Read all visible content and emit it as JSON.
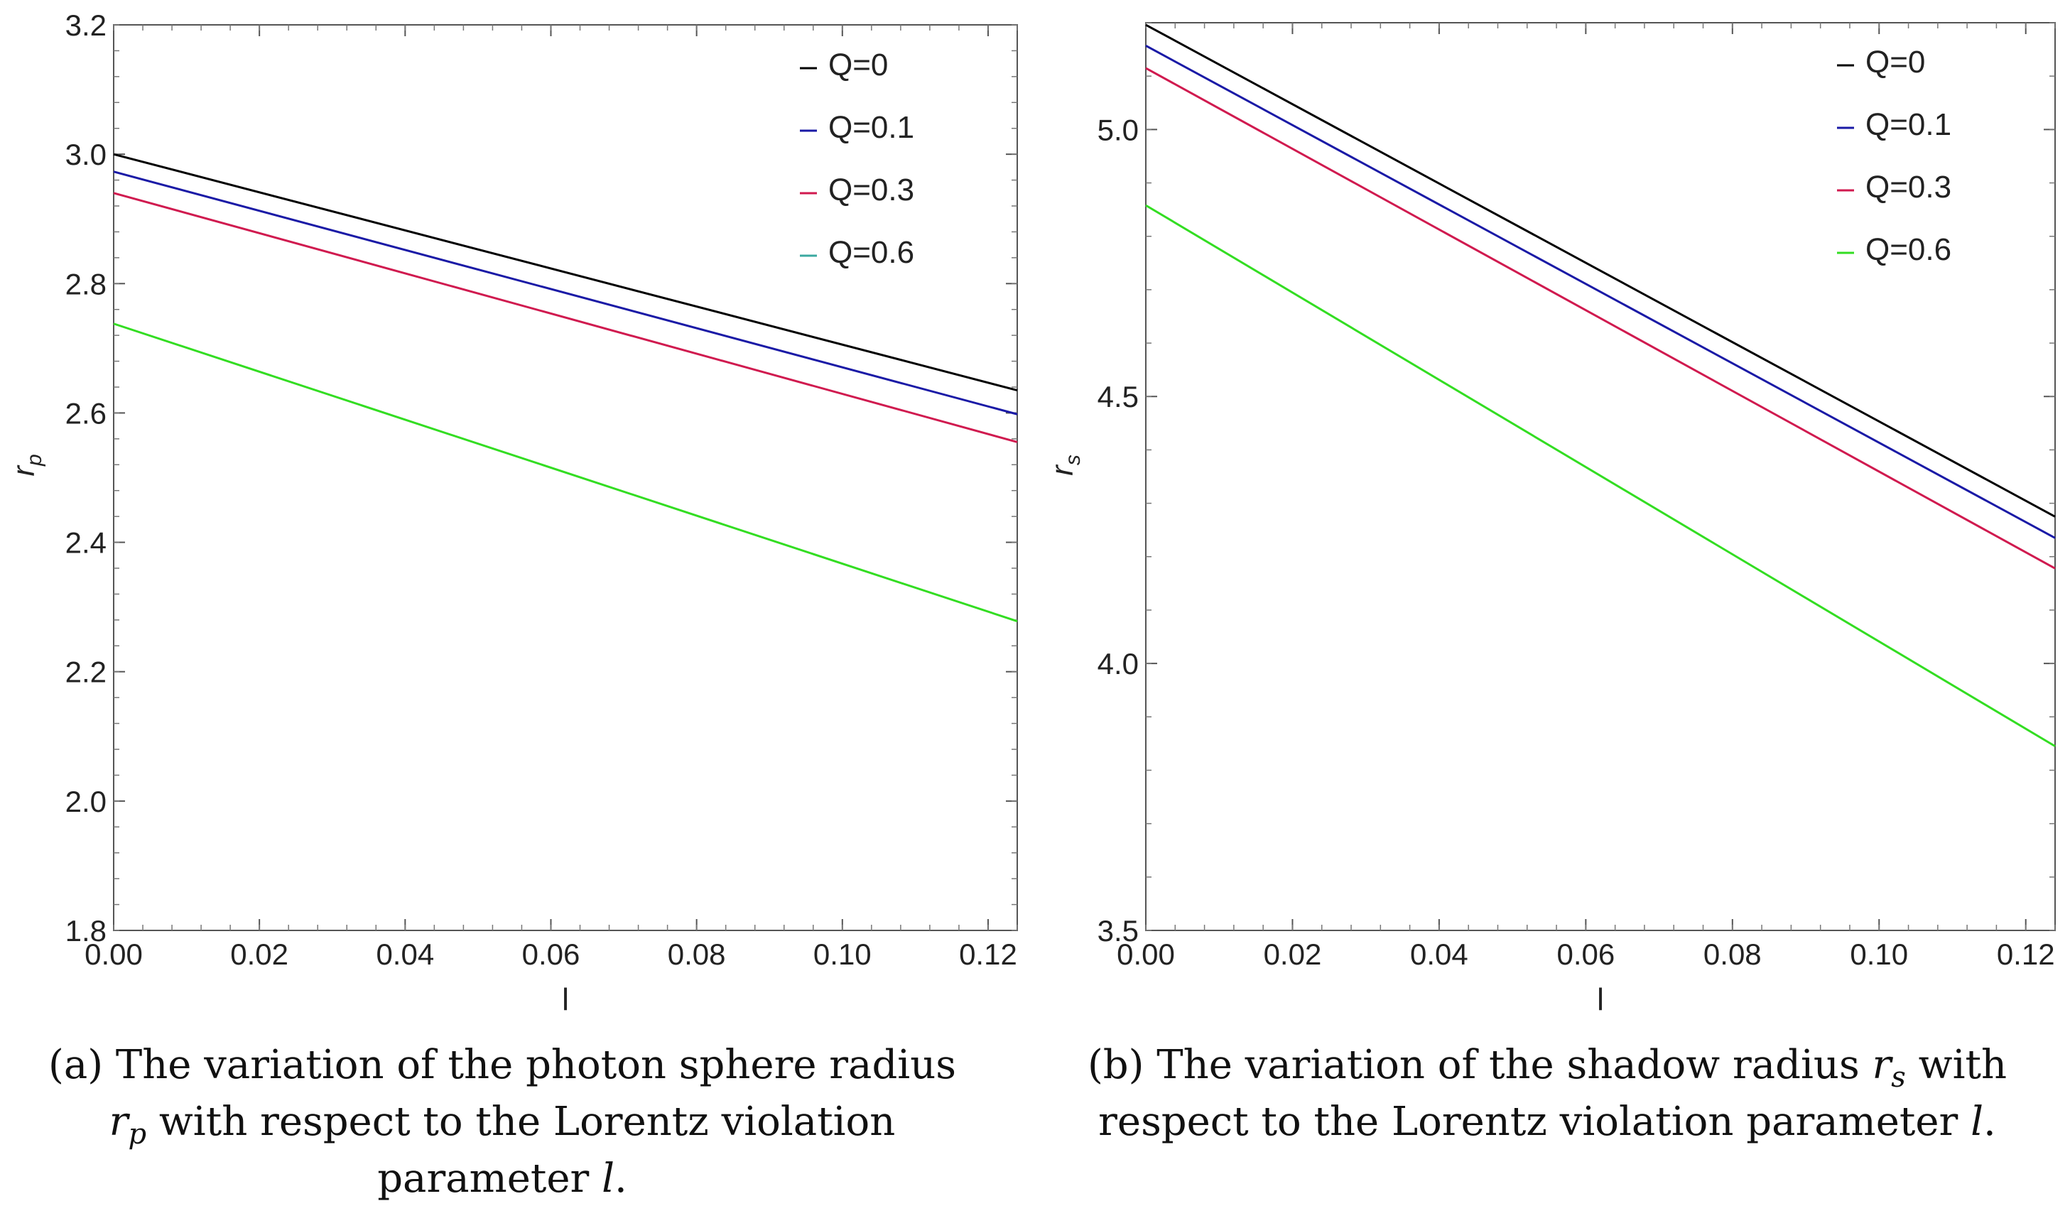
{
  "chart_data": [
    {
      "type": "line",
      "xlabel": "l",
      "ylabel": "r_p",
      "xlim": [
        0,
        0.124
      ],
      "ylim": [
        1.8,
        3.2
      ],
      "x_ticks": [
        0.0,
        0.02,
        0.04,
        0.06,
        0.08,
        0.1,
        0.12
      ],
      "x_tick_labels": [
        "0.00",
        "0.02",
        "0.04",
        "0.06",
        "0.08",
        "0.10",
        "0.12"
      ],
      "y_ticks": [
        1.8,
        2.0,
        2.2,
        2.4,
        2.6,
        2.8,
        3.0,
        3.2
      ],
      "y_tick_labels": [
        "1.8",
        "2.0",
        "2.2",
        "2.4",
        "2.6",
        "2.8",
        "3.0",
        "3.2"
      ],
      "legend_position": "top-right",
      "series": [
        {
          "name": "Q=0",
          "color": "#000000",
          "x": [
            0,
            0.124
          ],
          "y": [
            3.0,
            2.635
          ]
        },
        {
          "name": "Q=0.1",
          "color": "#1a1aa6",
          "x": [
            0,
            0.124
          ],
          "y": [
            2.973,
            2.598
          ]
        },
        {
          "name": "Q=0.3",
          "color": "#d01a4f",
          "x": [
            0,
            0.124
          ],
          "y": [
            2.94,
            2.555
          ]
        },
        {
          "name": "Q=0.6",
          "color": "#33dd22",
          "legend_color": "#3aa8a0",
          "x": [
            0,
            0.124
          ],
          "y": [
            2.738,
            2.278
          ]
        }
      ],
      "caption": {
        "lines": [
          [
            "(a) The variation of the photon sphere radius"
          ],
          [
            "r",
            "p",
            " with respect to the Lorentz violation"
          ],
          [
            "parameter ",
            "l",
            "."
          ]
        ]
      }
    },
    {
      "type": "line",
      "xlabel": "l",
      "ylabel": "r_s",
      "xlim": [
        0,
        0.124
      ],
      "ylim": [
        3.5,
        5.2
      ],
      "x_ticks": [
        0.0,
        0.02,
        0.04,
        0.06,
        0.08,
        0.1,
        0.12
      ],
      "x_tick_labels": [
        "0.00",
        "0.02",
        "0.04",
        "0.06",
        "0.08",
        "0.10",
        "0.12"
      ],
      "y_ticks": [
        3.5,
        4.0,
        4.5,
        5.0
      ],
      "y_tick_labels": [
        "3.5",
        "4.0",
        "4.5",
        "5.0"
      ],
      "legend_position": "top-right",
      "series": [
        {
          "name": "Q=0",
          "color": "#000000",
          "x": [
            0,
            0.124
          ],
          "y": [
            5.196,
            4.275
          ]
        },
        {
          "name": "Q=0.1",
          "color": "#1a1aa6",
          "x": [
            0,
            0.124
          ],
          "y": [
            5.157,
            4.235
          ]
        },
        {
          "name": "Q=0.3",
          "color": "#d01a4f",
          "x": [
            0,
            0.124
          ],
          "y": [
            5.115,
            4.178
          ]
        },
        {
          "name": "Q=0.6",
          "color": "#33dd22",
          "legend_color": "#33dd22",
          "x": [
            0,
            0.124
          ],
          "y": [
            4.858,
            3.845
          ]
        }
      ],
      "caption": {
        "lines": [
          [
            "(b) The variation of the shadow radius ",
            "r",
            "s",
            " with"
          ],
          [
            "respect to the Lorentz violation parameter ",
            "l",
            "."
          ]
        ]
      }
    }
  ]
}
